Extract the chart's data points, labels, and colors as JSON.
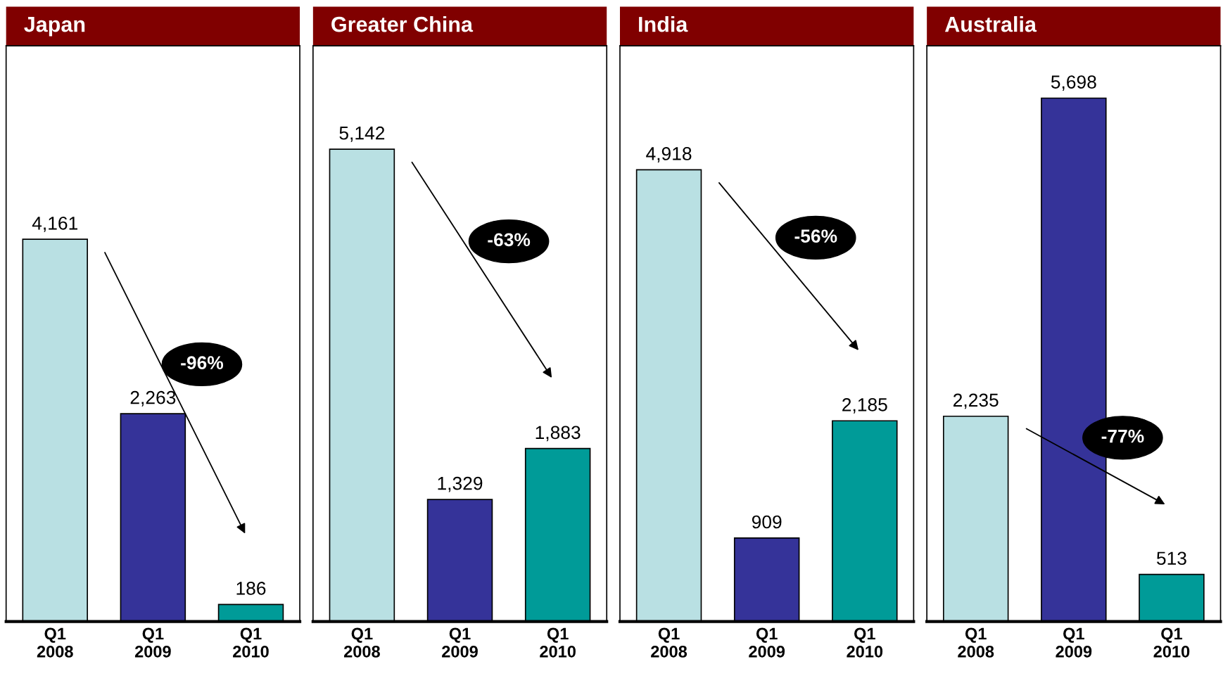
{
  "chart_data": [
    {
      "type": "bar",
      "title": "Japan",
      "categories": [
        "Q1\n2008",
        "Q1\n2009",
        "Q1\n2010"
      ],
      "values": [
        4161,
        2263,
        186
      ],
      "value_labels": [
        "4,161",
        "2,263",
        "186"
      ],
      "colors": [
        "#b9e0e3",
        "#353399",
        "#009b98"
      ],
      "annotations": [
        "-96%"
      ]
    },
    {
      "type": "bar",
      "title": "Greater China",
      "categories": [
        "Q1\n2008",
        "Q1\n2009",
        "Q1\n2010"
      ],
      "values": [
        5142,
        1329,
        1883
      ],
      "value_labels": [
        "5,142",
        "1,329",
        "1,883"
      ],
      "colors": [
        "#b9e0e3",
        "#353399",
        "#009b98"
      ],
      "annotations": [
        "-63%"
      ]
    },
    {
      "type": "bar",
      "title": "India",
      "categories": [
        "Q1\n2008",
        "Q1\n2009",
        "Q1\n2010"
      ],
      "values": [
        4918,
        909,
        2185
      ],
      "value_labels": [
        "4,918",
        "909",
        "2,185"
      ],
      "colors": [
        "#b9e0e3",
        "#353399",
        "#009b98"
      ],
      "annotations": [
        "-56%"
      ]
    },
    {
      "type": "bar",
      "title": "Australia",
      "categories": [
        "Q1\n2008",
        "Q1\n2009",
        "Q1\n2010"
      ],
      "values": [
        2235,
        5698,
        513
      ],
      "value_labels": [
        "2,235",
        "5,698",
        "513"
      ],
      "colors": [
        "#b9e0e3",
        "#353399",
        "#009b98"
      ],
      "annotations": [
        "-77%"
      ]
    }
  ]
}
